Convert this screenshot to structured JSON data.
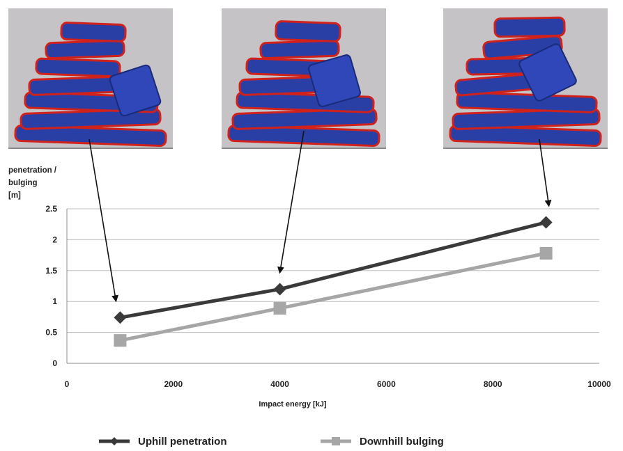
{
  "panels": [
    {
      "name": "simulation-snapshot-1000kJ"
    },
    {
      "name": "simulation-snapshot-4000kJ"
    },
    {
      "name": "simulation-snapshot-9000kJ"
    }
  ],
  "colors": {
    "panel_bg": "#c6c3c7",
    "block_blue": "#2a3fa6",
    "block_edge_red": "#d0221b",
    "series_uphill": "#3a3a3a",
    "series_downhill": "#a6a6a6",
    "grid": "#bdbdbd"
  },
  "chart_data": {
    "type": "line",
    "ylabel": "penetration /\nbulging\n[m]",
    "xlabel": "Impact energy [kJ]",
    "xlim": [
      0,
      10000
    ],
    "ylim": [
      0,
      2.5
    ],
    "xticks": [
      0,
      2000,
      4000,
      6000,
      8000,
      10000
    ],
    "yticks": [
      0,
      0.5,
      1,
      1.5,
      2,
      2.5
    ],
    "ytick_labels": [
      "0",
      "0.5",
      "1",
      "1.5",
      "2",
      "2.5"
    ],
    "grid": true,
    "legend_position": "bottom",
    "series": [
      {
        "name": "Uphill penetration",
        "marker": "diamond",
        "x": [
          1000,
          4000,
          9000
        ],
        "y": [
          0.74,
          1.2,
          2.28
        ]
      },
      {
        "name": "Downhill bulging",
        "marker": "square",
        "x": [
          1000,
          4000,
          9000
        ],
        "y": [
          0.37,
          0.89,
          1.78
        ]
      }
    ]
  }
}
